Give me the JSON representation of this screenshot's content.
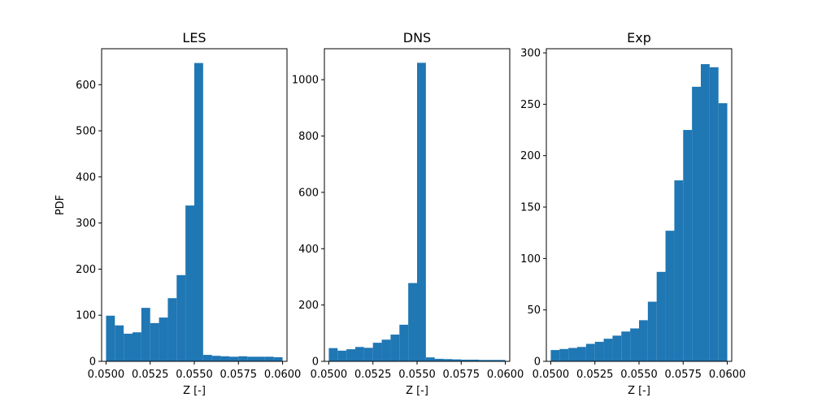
{
  "chart_data": [
    {
      "type": "bar",
      "title": "LES",
      "xlabel": "Z [-]",
      "ylabel": "PDF",
      "xlim": [
        0.04975,
        0.06025
      ],
      "ylim": [
        0,
        678
      ],
      "xticks": [
        "0.0500",
        "0.0525",
        "0.0550",
        "0.0575",
        "0.0600"
      ],
      "yticks": [
        "0",
        "100",
        "200",
        "300",
        "400",
        "500",
        "600"
      ],
      "bin_edges": [
        0.05,
        0.0505,
        0.051,
        0.0515,
        0.052,
        0.0525,
        0.053,
        0.0535,
        0.054,
        0.0545,
        0.055,
        0.0555,
        0.056,
        0.0565,
        0.057,
        0.0575,
        0.058,
        0.0585,
        0.059,
        0.0595,
        0.06
      ],
      "values": [
        99,
        78,
        60,
        63,
        116,
        83,
        95,
        137,
        187,
        338,
        647,
        14,
        12,
        11,
        10,
        11,
        10,
        10,
        10,
        9
      ],
      "color": "#1f77b4"
    },
    {
      "type": "bar",
      "title": "DNS",
      "xlabel": "Z [-]",
      "ylabel": "",
      "xlim": [
        0.04975,
        0.06025
      ],
      "ylim": [
        0,
        1110
      ],
      "xticks": [
        "0.0500",
        "0.0525",
        "0.0550",
        "0.0575",
        "0.0600"
      ],
      "yticks": [
        "0",
        "200",
        "400",
        "600",
        "800",
        "1000"
      ],
      "bin_edges": [
        0.05,
        0.0505,
        0.051,
        0.0515,
        0.052,
        0.0525,
        0.053,
        0.0535,
        0.054,
        0.0545,
        0.055,
        0.0555,
        0.056,
        0.0565,
        0.057,
        0.0575,
        0.058,
        0.0585,
        0.059,
        0.0595,
        0.06
      ],
      "values": [
        47,
        38,
        43,
        51,
        48,
        66,
        77,
        95,
        130,
        278,
        1060,
        14,
        9,
        8,
        7,
        6,
        6,
        5,
        5,
        5
      ],
      "color": "#1f77b4"
    },
    {
      "type": "bar",
      "title": "Exp",
      "xlabel": "Z [-]",
      "ylabel": "",
      "xlim": [
        0.04975,
        0.06025
      ],
      "ylim": [
        0,
        304
      ],
      "xticks": [
        "0.0500",
        "0.0525",
        "0.0550",
        "0.0575",
        "0.0600"
      ],
      "yticks": [
        "0",
        "50",
        "100",
        "150",
        "200",
        "250",
        "300"
      ],
      "bin_edges": [
        0.05,
        0.0505,
        0.051,
        0.0515,
        0.052,
        0.0525,
        0.053,
        0.0535,
        0.054,
        0.0545,
        0.055,
        0.0555,
        0.056,
        0.0565,
        0.057,
        0.0575,
        0.058,
        0.0585,
        0.059,
        0.0595,
        0.06
      ],
      "values": [
        11,
        12,
        13,
        14,
        17,
        19,
        22,
        25,
        29,
        32,
        40,
        58,
        87,
        127,
        176,
        225,
        267,
        289,
        286,
        251
      ],
      "color": "#1f77b4"
    }
  ]
}
